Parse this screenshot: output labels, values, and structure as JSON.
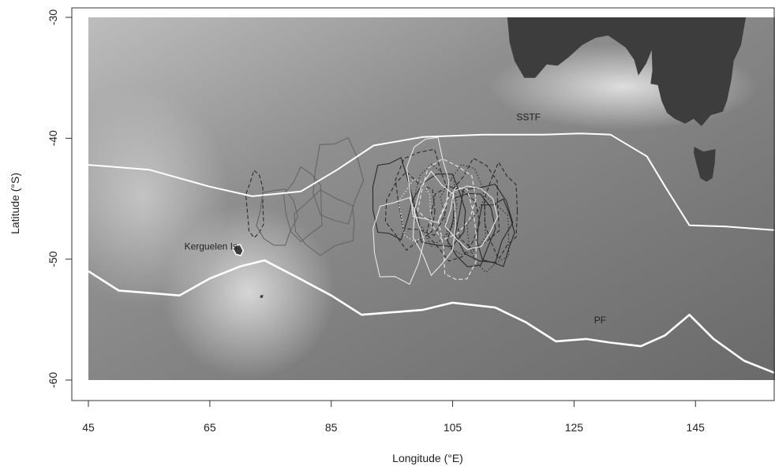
{
  "colors": {
    "ocean_light": "#c9c9c9",
    "ocean_dark": "#6e6e6e",
    "land": "#3d3d3d",
    "front_line": "#ffffff",
    "contour_dark": "#2a2a2a",
    "contour_mid": "#666666",
    "contour_light": "#e8e8e8"
  },
  "chart_data": {
    "type": "map",
    "xlabel": "Longitude (°E)",
    "ylabel": "Latitude (°S)",
    "xlim": [
      44,
      158
    ],
    "ylim": [
      -62,
      -30
    ],
    "x_ticks": [
      45,
      65,
      85,
      105,
      125,
      145
    ],
    "y_ticks": [
      -30,
      -40,
      -50,
      -60
    ],
    "map_extent": {
      "lon": [
        45,
        158
      ],
      "lat": [
        -60,
        -30
      ]
    },
    "labels": [
      {
        "text": "Kerguelen Is.",
        "lon": 70,
        "lat": -49.2
      },
      {
        "text": "SSTF",
        "lon": 117.5,
        "lat": -38.5
      },
      {
        "text": "PF",
        "lon": 129.3,
        "lat": -55.3
      }
    ],
    "fronts": [
      {
        "name": "SSTF",
        "points": [
          [
            45,
            -42.2
          ],
          [
            55,
            -42.6
          ],
          [
            65,
            -44.0
          ],
          [
            72,
            -44.8
          ],
          [
            80,
            -44.4
          ],
          [
            86,
            -42.6
          ],
          [
            92,
            -40.6
          ],
          [
            100,
            -39.9
          ],
          [
            110,
            -39.7
          ],
          [
            120,
            -39.7
          ],
          [
            126,
            -39.6
          ],
          [
            131,
            -39.7
          ],
          [
            137,
            -41.5
          ],
          [
            140,
            -44.0
          ],
          [
            144,
            -47.2
          ],
          [
            150,
            -47.3
          ],
          [
            158,
            -47.6
          ]
        ]
      },
      {
        "name": "PF",
        "points": [
          [
            45,
            -51.0
          ],
          [
            50,
            -52.6
          ],
          [
            55,
            -52.8
          ],
          [
            60,
            -53.0
          ],
          [
            65,
            -51.6
          ],
          [
            70,
            -50.6
          ],
          [
            74,
            -50.1
          ],
          [
            79,
            -51.4
          ],
          [
            85,
            -53.0
          ],
          [
            90,
            -54.6
          ],
          [
            95,
            -54.4
          ],
          [
            100,
            -54.2
          ],
          [
            105,
            -53.6
          ],
          [
            112,
            -54.0
          ],
          [
            117,
            -55.2
          ],
          [
            122,
            -56.8
          ],
          [
            127,
            -56.6
          ],
          [
            131,
            -56.9
          ],
          [
            136,
            -57.2
          ],
          [
            140,
            -56.3
          ],
          [
            144,
            -54.6
          ],
          [
            148,
            -56.6
          ],
          [
            153,
            -58.4
          ],
          [
            158,
            -59.4
          ]
        ]
      }
    ],
    "landmasses": [
      {
        "name": "Australia",
        "points": [
          [
            114,
            -30
          ],
          [
            114.4,
            -32.1
          ],
          [
            115.2,
            -33.6
          ],
          [
            116.8,
            -35.0
          ],
          [
            118.6,
            -35.0
          ],
          [
            120.5,
            -33.9
          ],
          [
            122.3,
            -34.0
          ],
          [
            124.1,
            -33.3
          ],
          [
            126.3,
            -32.3
          ],
          [
            128.5,
            -31.7
          ],
          [
            130.6,
            -31.5
          ],
          [
            132.1,
            -32.0
          ],
          [
            133.5,
            -32.5
          ],
          [
            134.9,
            -33.5
          ],
          [
            135.6,
            -34.8
          ],
          [
            136.9,
            -33.8
          ],
          [
            137.8,
            -32.7
          ],
          [
            137.9,
            -34.4
          ],
          [
            137.6,
            -35.5
          ],
          [
            138.8,
            -35.6
          ],
          [
            139.4,
            -36.9
          ],
          [
            140.3,
            -37.9
          ],
          [
            141.6,
            -38.4
          ],
          [
            143.3,
            -38.8
          ],
          [
            144.7,
            -38.4
          ],
          [
            146.0,
            -39.0
          ],
          [
            147.5,
            -38.1
          ],
          [
            149.5,
            -37.8
          ],
          [
            150.2,
            -36.9
          ],
          [
            150.9,
            -35.2
          ],
          [
            151.3,
            -33.6
          ],
          [
            152.5,
            -32.3
          ],
          [
            153.2,
            -30.3
          ],
          [
            153.3,
            -30
          ]
        ]
      },
      {
        "name": "Tasmania",
        "points": [
          [
            144.8,
            -40.7
          ],
          [
            146.3,
            -41.1
          ],
          [
            148.3,
            -40.9
          ],
          [
            148.2,
            -42.0
          ],
          [
            147.8,
            -43.3
          ],
          [
            146.8,
            -43.6
          ],
          [
            145.8,
            -43.3
          ],
          [
            145.2,
            -42.2
          ],
          [
            144.7,
            -41.2
          ]
        ]
      },
      {
        "name": "Kerguelen",
        "points": [
          [
            69.0,
            -48.9
          ],
          [
            70.0,
            -48.8
          ],
          [
            70.5,
            -49.3
          ],
          [
            70.1,
            -49.7
          ],
          [
            69.3,
            -49.6
          ],
          [
            68.9,
            -49.2
          ]
        ]
      },
      {
        "name": "Heard",
        "points": [
          [
            73.3,
            -53.0
          ],
          [
            73.8,
            -52.95
          ],
          [
            73.7,
            -53.2
          ],
          [
            73.3,
            -53.2
          ]
        ]
      }
    ],
    "contours": [
      {
        "style": "dark-dashed",
        "center": [
          72.5,
          -45.5
        ],
        "rx": 1.5,
        "ry": 2.7
      },
      {
        "style": "mid-solid",
        "center": [
          76,
          -46.5
        ],
        "rx": 3.2,
        "ry": 2.4
      },
      {
        "style": "mid-solid",
        "center": [
          80.5,
          -45.5
        ],
        "rx": 3.2,
        "ry": 2.9
      },
      {
        "style": "mid-solid",
        "center": [
          86,
          -43.5
        ],
        "rx": 4.0,
        "ry": 3.6
      },
      {
        "style": "mid-solid",
        "center": [
          84,
          -47
        ],
        "rx": 5.0,
        "ry": 2.5
      },
      {
        "style": "dark-solid",
        "center": [
          95,
          -45
        ],
        "rx": 3.3,
        "ry": 3.4
      },
      {
        "style": "dark-dashed",
        "center": [
          98,
          -46
        ],
        "rx": 4.0,
        "ry": 3.0
      },
      {
        "style": "dark-dashed",
        "center": [
          100,
          -44.5
        ],
        "rx": 4.4,
        "ry": 3.6
      },
      {
        "style": "dark-dotted",
        "center": [
          102,
          -45.5
        ],
        "rx": 3.5,
        "ry": 3.2
      },
      {
        "style": "dark-solid",
        "center": [
          103,
          -46
        ],
        "rx": 4.4,
        "ry": 3.1
      },
      {
        "style": "dark-dashed",
        "center": [
          105,
          -47
        ],
        "rx": 4.1,
        "ry": 3.0
      },
      {
        "style": "dark-dotted",
        "center": [
          107,
          -46
        ],
        "rx": 3.8,
        "ry": 3.7
      },
      {
        "style": "dark-solid",
        "center": [
          108,
          -47.5
        ],
        "rx": 3.7,
        "ry": 3.1
      },
      {
        "style": "dark-dashed",
        "center": [
          109,
          -45.5
        ],
        "rx": 4.0,
        "ry": 3.6
      },
      {
        "style": "dark-solid",
        "center": [
          110,
          -47
        ],
        "rx": 4.5,
        "ry": 3.3
      },
      {
        "style": "dark-dotted",
        "center": [
          111,
          -48
        ],
        "rx": 3.5,
        "ry": 2.9
      },
      {
        "style": "dark-solid",
        "center": [
          112,
          -47.8
        ],
        "rx": 3.0,
        "ry": 2.8
      },
      {
        "style": "dark-dashed",
        "center": [
          113,
          -46
        ],
        "rx": 2.7,
        "ry": 3.7
      },
      {
        "style": "light-solid",
        "center": [
          96,
          -48.5
        ],
        "rx": 4.2,
        "ry": 3.6
      },
      {
        "style": "light-solid",
        "center": [
          102,
          -47
        ],
        "rx": 3.4,
        "ry": 4.0
      },
      {
        "style": "light-solid",
        "center": [
          101,
          -43.5
        ],
        "rx": 3.5,
        "ry": 3.6
      },
      {
        "style": "light-dashed",
        "center": [
          104,
          -45
        ],
        "rx": 4.5,
        "ry": 3.2
      },
      {
        "style": "light-dashed",
        "center": [
          106,
          -48
        ],
        "rx": 3.2,
        "ry": 3.9
      },
      {
        "style": "light-solid",
        "center": [
          108,
          -46.5
        ],
        "rx": 4.0,
        "ry": 2.6
      },
      {
        "style": "light-dotted",
        "center": [
          99,
          -46
        ],
        "rx": 2.8,
        "ry": 2.5
      }
    ]
  }
}
